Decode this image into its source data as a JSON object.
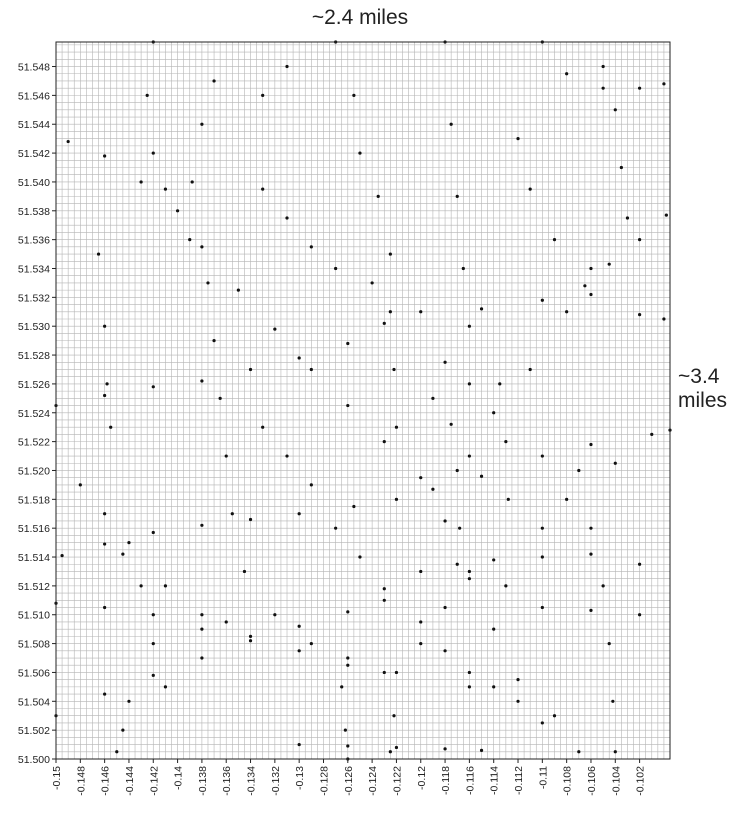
{
  "chart_data": {
    "type": "scatter",
    "title": "",
    "xlabel": "",
    "ylabel": "",
    "xlim": [
      -0.15,
      -0.0995
    ],
    "ylim": [
      51.5,
      51.5497
    ],
    "grid": true,
    "marker_color": "#111111",
    "grid_color": "#b5b5b5",
    "x_ticks": [
      "-0.15",
      "-0.148",
      "-0.146",
      "-0.144",
      "-0.142",
      "-0.14",
      "-0.138",
      "-0.136",
      "-0.134",
      "-0.132",
      "-0.13",
      "-0.128",
      "-0.126",
      "-0.124",
      "-0.122",
      "-0.12",
      "-0.118",
      "-0.116",
      "-0.114",
      "-0.112",
      "-0.11",
      "-0.108",
      "-0.106",
      "-0.104",
      "-0.102"
    ],
    "y_ticks": [
      "51.500",
      "51.502",
      "51.504",
      "51.506",
      "51.508",
      "51.510",
      "51.512",
      "51.514",
      "51.516",
      "51.518",
      "51.520",
      "51.522",
      "51.524",
      "51.526",
      "51.528",
      "51.530",
      "51.532",
      "51.534",
      "51.536",
      "51.538",
      "51.540",
      "51.542",
      "51.544",
      "51.546",
      "51.548"
    ],
    "annotations": [
      {
        "id": "width",
        "text": "~2.4 miles"
      },
      {
        "id": "height",
        "text": "~3.4 miles"
      }
    ],
    "series": [
      {
        "values": [
          {
            "x": -0.1495,
            "y": 51.5141
          },
          {
            "x": -0.146,
            "y": 51.5149
          },
          {
            "x": -0.142,
            "y": 51.5157
          },
          {
            "x": -0.138,
            "y": 51.5162
          },
          {
            "x": -0.134,
            "y": 51.5166
          },
          {
            "x": -0.13,
            "y": 51.517
          },
          {
            "x": -0.1255,
            "y": 51.5175
          },
          {
            "x": -0.122,
            "y": 51.518
          },
          {
            "x": -0.119,
            "y": 51.5187
          },
          {
            "x": -0.115,
            "y": 51.5196
          },
          {
            "x": -0.11,
            "y": 51.521
          },
          {
            "x": -0.106,
            "y": 51.5218
          },
          {
            "x": -0.101,
            "y": 51.5225
          },
          {
            "x": -0.0995,
            "y": 51.5228
          },
          {
            "x": -0.149,
            "y": 51.5428
          },
          {
            "x": -0.146,
            "y": 51.5418
          },
          {
            "x": -0.143,
            "y": 51.54
          },
          {
            "x": -0.14,
            "y": 51.538
          },
          {
            "x": -0.138,
            "y": 51.5355
          },
          {
            "x": -0.135,
            "y": 51.5325
          },
          {
            "x": -0.132,
            "y": 51.5298
          },
          {
            "x": -0.129,
            "y": 51.527
          },
          {
            "x": -0.126,
            "y": 51.5245
          },
          {
            "x": -0.123,
            "y": 51.522
          },
          {
            "x": -0.12,
            "y": 51.5195
          },
          {
            "x": -0.118,
            "y": 51.5165
          },
          {
            "x": -0.116,
            "y": 51.513
          },
          {
            "x": -0.114,
            "y": 51.509
          },
          {
            "x": -0.112,
            "y": 51.5055
          },
          {
            "x": -0.109,
            "y": 51.503
          },
          {
            "x": -0.107,
            "y": 51.5005
          },
          {
            "x": -0.142,
            "y": 51.5497
          },
          {
            "x": -0.1425,
            "y": 51.546
          },
          {
            "x": -0.142,
            "y": 51.542
          },
          {
            "x": -0.141,
            "y": 51.5395
          },
          {
            "x": -0.139,
            "y": 51.536
          },
          {
            "x": -0.1375,
            "y": 51.533
          },
          {
            "x": -0.137,
            "y": 51.529
          },
          {
            "x": -0.1365,
            "y": 51.525
          },
          {
            "x": -0.136,
            "y": 51.521
          },
          {
            "x": -0.1355,
            "y": 51.517
          },
          {
            "x": -0.1345,
            "y": 51.513
          },
          {
            "x": -0.132,
            "y": 51.51
          },
          {
            "x": -0.129,
            "y": 51.508
          },
          {
            "x": -0.126,
            "y": 51.5065
          },
          {
            "x": -0.15,
            "y": 51.5245
          },
          {
            "x": -0.146,
            "y": 51.5252
          },
          {
            "x": -0.142,
            "y": 51.5258
          },
          {
            "x": -0.138,
            "y": 51.5262
          },
          {
            "x": -0.134,
            "y": 51.527
          },
          {
            "x": -0.13,
            "y": 51.5278
          },
          {
            "x": -0.126,
            "y": 51.5288
          },
          {
            "x": -0.123,
            "y": 51.5302
          },
          {
            "x": -0.12,
            "y": 51.531
          },
          {
            "x": -0.115,
            "y": 51.5312
          },
          {
            "x": -0.11,
            "y": 51.5318
          },
          {
            "x": -0.106,
            "y": 51.5322
          },
          {
            "x": -0.102,
            "y": 51.5308
          },
          {
            "x": -0.1,
            "y": 51.5305
          },
          {
            "x": -0.127,
            "y": 51.5497
          },
          {
            "x": -0.1255,
            "y": 51.546
          },
          {
            "x": -0.125,
            "y": 51.542
          },
          {
            "x": -0.1235,
            "y": 51.539
          },
          {
            "x": -0.1225,
            "y": 51.535
          },
          {
            "x": -0.1225,
            "y": 51.531
          },
          {
            "x": -0.1222,
            "y": 51.527
          },
          {
            "x": -0.122,
            "y": 51.523
          },
          {
            "x": -0.118,
            "y": 51.5497
          },
          {
            "x": -0.1175,
            "y": 51.544
          },
          {
            "x": -0.117,
            "y": 51.539
          },
          {
            "x": -0.1165,
            "y": 51.534
          },
          {
            "x": -0.116,
            "y": 51.53
          },
          {
            "x": -0.105,
            "y": 51.548
          },
          {
            "x": -0.104,
            "y": 51.545
          },
          {
            "x": -0.1035,
            "y": 51.541
          },
          {
            "x": -0.103,
            "y": 51.5375
          },
          {
            "x": -0.106,
            "y": 51.534
          },
          {
            "x": -0.108,
            "y": 51.531
          },
          {
            "x": -0.111,
            "y": 51.527
          },
          {
            "x": -0.114,
            "y": 51.524
          },
          {
            "x": -0.116,
            "y": 51.521
          },
          {
            "x": -0.107,
            "y": 51.52
          },
          {
            "x": -0.106,
            "y": 51.516
          },
          {
            "x": -0.105,
            "y": 51.512
          },
          {
            "x": -0.1045,
            "y": 51.508
          },
          {
            "x": -0.1042,
            "y": 51.504
          },
          {
            "x": -0.104,
            "y": 51.5005
          },
          {
            "x": -0.11,
            "y": 51.5497
          },
          {
            "x": -0.108,
            "y": 51.5475
          },
          {
            "x": -0.105,
            "y": 51.5465
          },
          {
            "x": -0.102,
            "y": 51.5465
          },
          {
            "x": -0.1,
            "y": 51.5468
          },
          {
            "x": -0.0998,
            "y": 51.5377
          },
          {
            "x": -0.102,
            "y": 51.536
          },
          {
            "x": -0.1045,
            "y": 51.5343
          },
          {
            "x": -0.1065,
            "y": 51.5328
          },
          {
            "x": -0.15,
            "y": 51.5108
          },
          {
            "x": -0.146,
            "y": 51.5105
          },
          {
            "x": -0.142,
            "y": 51.51
          },
          {
            "x": -0.138,
            "y": 51.509
          },
          {
            "x": -0.134,
            "y": 51.5085
          },
          {
            "x": -0.13,
            "y": 51.5075
          },
          {
            "x": -0.126,
            "y": 51.507
          },
          {
            "x": -0.123,
            "y": 51.506
          },
          {
            "x": -0.12,
            "y": 51.508
          },
          {
            "x": -0.118,
            "y": 51.5105
          },
          {
            "x": -0.116,
            "y": 51.5125
          },
          {
            "x": -0.113,
            "y": 51.512
          },
          {
            "x": -0.11,
            "y": 51.5105
          },
          {
            "x": -0.106,
            "y": 51.5103
          },
          {
            "x": -0.102,
            "y": 51.51
          },
          {
            "x": -0.15,
            "y": 51.503
          },
          {
            "x": -0.146,
            "y": 51.5045
          },
          {
            "x": -0.142,
            "y": 51.5058
          },
          {
            "x": -0.138,
            "y": 51.507
          },
          {
            "x": -0.134,
            "y": 51.5082
          },
          {
            "x": -0.13,
            "y": 51.5092
          },
          {
            "x": -0.126,
            "y": 51.5102
          },
          {
            "x": -0.123,
            "y": 51.5118
          },
          {
            "x": -0.12,
            "y": 51.513
          },
          {
            "x": -0.117,
            "y": 51.5135
          },
          {
            "x": -0.114,
            "y": 51.5138
          },
          {
            "x": -0.11,
            "y": 51.514
          },
          {
            "x": -0.106,
            "y": 51.5142
          },
          {
            "x": -0.102,
            "y": 51.5135
          },
          {
            "x": -0.1265,
            "y": 51.505
          },
          {
            "x": -0.1262,
            "y": 51.502
          },
          {
            "x": -0.126,
            "y": 51.5
          },
          {
            "x": -0.122,
            "y": 51.506
          },
          {
            "x": -0.1222,
            "y": 51.503
          },
          {
            "x": -0.1225,
            "y": 51.5005
          },
          {
            "x": -0.13,
            "y": 51.501
          },
          {
            "x": -0.126,
            "y": 51.5009
          },
          {
            "x": -0.122,
            "y": 51.5008
          },
          {
            "x": -0.118,
            "y": 51.5007
          },
          {
            "x": -0.115,
            "y": 51.5006
          },
          {
            "x": -0.116,
            "y": 51.506
          },
          {
            "x": -0.114,
            "y": 51.505
          },
          {
            "x": -0.112,
            "y": 51.504
          },
          {
            "x": -0.11,
            "y": 51.5025
          },
          {
            "x": -0.148,
            "y": 51.519
          },
          {
            "x": -0.146,
            "y": 51.517
          },
          {
            "x": -0.144,
            "y": 51.515
          },
          {
            "x": -0.141,
            "y": 51.512
          },
          {
            "x": -0.138,
            "y": 51.51
          },
          {
            "x": -0.136,
            "y": 51.5095
          },
          {
            "x": -0.1465,
            "y": 51.535
          },
          {
            "x": -0.146,
            "y": 51.53
          },
          {
            "x": -0.1458,
            "y": 51.526
          },
          {
            "x": -0.1455,
            "y": 51.523
          },
          {
            "x": -0.144,
            "y": 51.504
          },
          {
            "x": -0.1445,
            "y": 51.502
          },
          {
            "x": -0.145,
            "y": 51.5005
          },
          {
            "x": -0.1388,
            "y": 51.54
          },
          {
            "x": -0.138,
            "y": 51.544
          },
          {
            "x": -0.137,
            "y": 51.547
          },
          {
            "x": -0.133,
            "y": 51.546
          },
          {
            "x": -0.131,
            "y": 51.548
          },
          {
            "x": -0.1175,
            "y": 51.5232
          },
          {
            "x": -0.117,
            "y": 51.52
          },
          {
            "x": -0.1168,
            "y": 51.516
          },
          {
            "x": -0.1135,
            "y": 51.526
          },
          {
            "x": -0.113,
            "y": 51.522
          },
          {
            "x": -0.1128,
            "y": 51.518
          },
          {
            "x": -0.109,
            "y": 51.536
          },
          {
            "x": -0.111,
            "y": 51.5395
          },
          {
            "x": -0.112,
            "y": 51.543
          },
          {
            "x": -0.133,
            "y": 51.5395
          },
          {
            "x": -0.131,
            "y": 51.5375
          },
          {
            "x": -0.129,
            "y": 51.5355
          },
          {
            "x": -0.127,
            "y": 51.534
          },
          {
            "x": -0.124,
            "y": 51.533
          },
          {
            "x": -0.1445,
            "y": 51.5142
          },
          {
            "x": -0.143,
            "y": 51.512
          },
          {
            "x": -0.142,
            "y": 51.508
          },
          {
            "x": -0.141,
            "y": 51.505
          },
          {
            "x": -0.133,
            "y": 51.523
          },
          {
            "x": -0.131,
            "y": 51.521
          },
          {
            "x": -0.129,
            "y": 51.519
          },
          {
            "x": -0.127,
            "y": 51.516
          },
          {
            "x": -0.125,
            "y": 51.514
          },
          {
            "x": -0.123,
            "y": 51.511
          },
          {
            "x": -0.12,
            "y": 51.5095
          },
          {
            "x": -0.118,
            "y": 51.5075
          },
          {
            "x": -0.116,
            "y": 51.505
          },
          {
            "x": -0.119,
            "y": 51.525
          },
          {
            "x": -0.118,
            "y": 51.5275
          },
          {
            "x": -0.116,
            "y": 51.526
          },
          {
            "x": -0.11,
            "y": 51.516
          },
          {
            "x": -0.108,
            "y": 51.518
          },
          {
            "x": -0.104,
            "y": 51.5205
          }
        ]
      }
    ]
  }
}
